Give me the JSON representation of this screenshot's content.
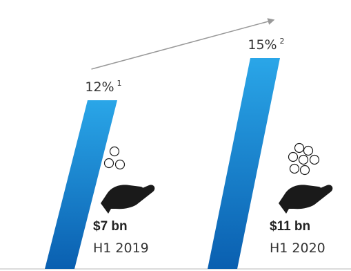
{
  "chart_data": {
    "type": "bar",
    "categories": [
      "H1 2019",
      "H1 2020"
    ],
    "values": [
      12,
      15
    ],
    "value_unit": "%",
    "series": [
      {
        "values": [
          12,
          15
        ]
      }
    ],
    "data_labels": [
      {
        "value": "12%",
        "footnote": "1"
      },
      {
        "value": "15%",
        "footnote": "2"
      }
    ],
    "amounts": [
      "$7 bn",
      "$11 bn"
    ],
    "coin_counts": [
      3,
      7
    ],
    "trend_arrow": "up",
    "grid": false,
    "legend": "none",
    "colors": {
      "bar_top": "#2aa6e8",
      "bar_bottom": "#0a5fb0",
      "arrow": "#999999",
      "icon": "#1a1a1a"
    }
  }
}
